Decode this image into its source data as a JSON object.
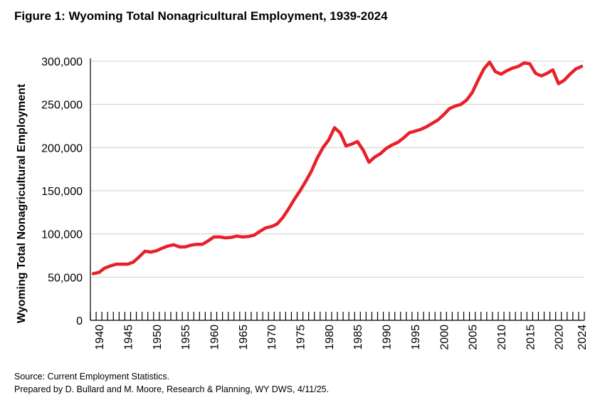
{
  "figure": {
    "title": "Figure 1: Wyoming Total Nonagricultural Employment, 1939-2024",
    "source_line1": "Source: Current Employment Statistics.",
    "source_line2": "Prepared by D. Bullard and M. Moore, Research & Planning, WY DWS, 4/11/25."
  },
  "chart_data": {
    "type": "line",
    "title": "Figure 1: Wyoming Total Nonagricultural Employment, 1939-2024",
    "xlabel": "",
    "ylabel": "Wyoming Total Nonagricultural Employment",
    "xlim": [
      1939,
      2024
    ],
    "ylim": [
      0,
      300000
    ],
    "yticks": [
      0,
      50000,
      100000,
      150000,
      200000,
      250000,
      300000
    ],
    "ytick_labels": [
      "0",
      "50,000",
      "100,000",
      "150,000",
      "200,000",
      "250,000",
      "300,000"
    ],
    "xticks": [
      1940,
      1945,
      1950,
      1955,
      1960,
      1965,
      1970,
      1975,
      1980,
      1985,
      1990,
      1995,
      2000,
      2005,
      2010,
      2015,
      2020,
      2024
    ],
    "xtick_labels": [
      "1940",
      "1945",
      "1950",
      "1955",
      "1960",
      "1965",
      "1970",
      "1975",
      "1980",
      "1985",
      "1990",
      "1995",
      "2000",
      "2005",
      "2010",
      "2015",
      "2020",
      "2024"
    ],
    "grid": "horizontal",
    "legend": "none",
    "color": "#e8202a",
    "x": [
      1939,
      1940,
      1941,
      1942,
      1943,
      1944,
      1945,
      1946,
      1947,
      1948,
      1949,
      1950,
      1951,
      1952,
      1953,
      1954,
      1955,
      1956,
      1957,
      1958,
      1959,
      1960,
      1961,
      1962,
      1963,
      1964,
      1965,
      1966,
      1967,
      1968,
      1969,
      1970,
      1971,
      1972,
      1973,
      1974,
      1975,
      1976,
      1977,
      1978,
      1979,
      1980,
      1981,
      1982,
      1983,
      1984,
      1985,
      1986,
      1987,
      1988,
      1989,
      1990,
      1991,
      1992,
      1993,
      1994,
      1995,
      1996,
      1997,
      1998,
      1999,
      2000,
      2001,
      2002,
      2003,
      2004,
      2005,
      2006,
      2007,
      2008,
      2009,
      2010,
      2011,
      2012,
      2013,
      2014,
      2015,
      2016,
      2017,
      2018,
      2019,
      2020,
      2021,
      2022,
      2023,
      2024
    ],
    "values": [
      54000,
      55500,
      60500,
      63000,
      65000,
      65000,
      65000,
      67500,
      73500,
      80000,
      79000,
      80500,
      83500,
      86000,
      87500,
      85000,
      85000,
      87000,
      88000,
      88000,
      92000,
      96500,
      96500,
      95500,
      96000,
      97500,
      96500,
      97000,
      98500,
      103000,
      107000,
      108500,
      111500,
      119000,
      129000,
      140000,
      150000,
      161000,
      173000,
      188000,
      200000,
      209000,
      223000,
      217000,
      202000,
      204000,
      207000,
      197000,
      183000,
      189000,
      193000,
      199000,
      203000,
      206000,
      211000,
      217000,
      219000,
      221000,
      224000,
      228000,
      232000,
      238000,
      245000,
      248000,
      250000,
      255000,
      264000,
      278000,
      291000,
      299000,
      288000,
      285000,
      289000,
      292000,
      294000,
      298000,
      297000,
      286000,
      283000,
      286000,
      290000,
      274000,
      278000,
      285000,
      291000,
      294000
    ]
  }
}
